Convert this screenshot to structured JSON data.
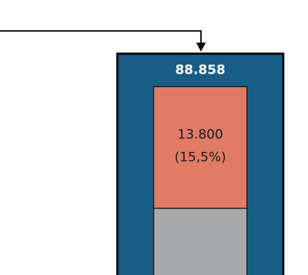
{
  "box": {
    "label": "88.858",
    "segments": [
      {
        "value": "13.800",
        "share": "(15,5%)"
      }
    ]
  }
}
